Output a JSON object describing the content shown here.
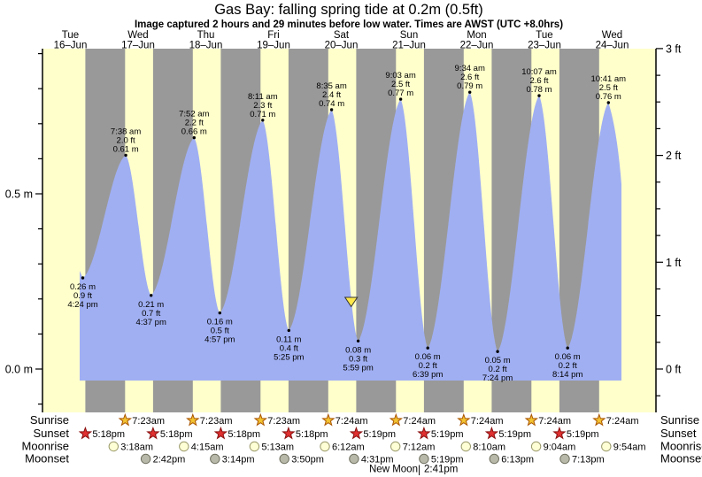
{
  "title": "Gas Bay: falling  spring tide at 0.2m (0.5ft)",
  "subtitle": "Image captured 2 hours and 29 minutes before low water. Times are AWST (UTC +8.0hrs)",
  "colors": {
    "day_band": "#ffffcc",
    "night_band": "#999999",
    "tide_fill": "#a0aff2",
    "day_label": "#ee3333",
    "sunrise_star": "#f2c231",
    "sunrise_star_outline": "#aa5500",
    "sunset_star": "#e03030",
    "sunset_star_outline": "#8a1010",
    "moonrise_circle": "#ffffd6",
    "moonrise_circle_outline": "#99996a",
    "moonset_circle": "#b9b9aa",
    "moonset_circle_outline": "#6f6f5f",
    "now_marker": "#ffe84a"
  },
  "chart_data": {
    "type": "area",
    "title": "Gas Bay: falling  spring tide at 0.2m (0.5ft)",
    "subtitle": "Image captured 2 hours and 29 minutes before low water. Times are AWST (UTC +8.0hrs)",
    "ylabel_left_unit": "m",
    "ylabel_right_unit": "ft",
    "ylim_m": [
      -0.12,
      0.95
    ],
    "grid": false,
    "days": [
      {
        "name": "Tue",
        "date": "16–Jun"
      },
      {
        "name": "Wed",
        "date": "17–Jun"
      },
      {
        "name": "Thu",
        "date": "18–Jun"
      },
      {
        "name": "Fri",
        "date": "19–Jun"
      },
      {
        "name": "Sat",
        "date": "20–Jun"
      },
      {
        "name": "Sun",
        "date": "21–Jun"
      },
      {
        "name": "Mon",
        "date": "22–Jun"
      },
      {
        "name": "Tue",
        "date": "23–Jun"
      },
      {
        "name": "Wed",
        "date": "24–Jun"
      }
    ],
    "y_axis_left": {
      "tick_step_m": 0.1,
      "labels": [
        {
          "m": 0.0,
          "text": "0.0 m"
        },
        {
          "m": 0.5,
          "text": "0.5 m"
        }
      ]
    },
    "y_axis_right": {
      "tick_step_ft": 0.25,
      "labels": [
        {
          "ft": 0,
          "text": "0 ft"
        },
        {
          "ft": 1,
          "text": "1 ft"
        },
        {
          "ft": 2,
          "text": "2 ft"
        },
        {
          "ft": 3,
          "text": "3 ft"
        }
      ]
    },
    "high_tides": [
      {
        "day_index": 1,
        "time": "7:38 am",
        "ft": "2.0 ft",
        "m": "0.61 m"
      },
      {
        "day_index": 2,
        "time": "7:52 am",
        "ft": "2.2 ft",
        "m": "0.66 m"
      },
      {
        "day_index": 3,
        "time": "8:11 am",
        "ft": "2.3 ft",
        "m": "0.71 m"
      },
      {
        "day_index": 4,
        "time": "8:35 am",
        "ft": "2.4 ft",
        "m": "0.74 m"
      },
      {
        "day_index": 5,
        "time": "9:03 am",
        "ft": "2.5 ft",
        "m": "0.77 m"
      },
      {
        "day_index": 6,
        "time": "9:34 am",
        "ft": "2.6 ft",
        "m": "0.79 m"
      },
      {
        "day_index": 7,
        "time": "10:07 am",
        "ft": "2.6 ft",
        "m": "0.78 m"
      },
      {
        "day_index": 8,
        "time": "10:41 am",
        "ft": "2.5 ft",
        "m": "0.76 m"
      }
    ],
    "low_tides": [
      {
        "day_index": 0,
        "m": "0.26 m",
        "ft": "0.9 ft",
        "time": "4:24 pm"
      },
      {
        "day_index": 1,
        "m": "0.21 m",
        "ft": "0.7 ft",
        "time": "4:37 pm"
      },
      {
        "day_index": 2,
        "m": "0.16 m",
        "ft": "0.5 ft",
        "time": "4:57 pm"
      },
      {
        "day_index": 3,
        "m": "0.11 m",
        "ft": "0.4 ft",
        "time": "5:25 pm"
      },
      {
        "day_index": 4,
        "m": "0.08 m",
        "ft": "0.3 ft",
        "time": "5:59 pm"
      },
      {
        "day_index": 5,
        "m": "0.06 m",
        "ft": "0.2 ft",
        "time": "6:39 pm"
      },
      {
        "day_index": 6,
        "m": "0.05 m",
        "ft": "0.2 ft",
        "time": "7:24 pm"
      },
      {
        "day_index": 7,
        "m": "0.06 m",
        "ft": "0.2 ft",
        "time": "8:14 pm"
      }
    ],
    "current_marker": {
      "day_index": 4,
      "hour": 15.5
    },
    "sun_moon": {
      "sunrise": {
        "label": "Sunrise",
        "events": [
          {
            "day_index": 1,
            "time": "7:23am"
          },
          {
            "day_index": 2,
            "time": "7:23am"
          },
          {
            "day_index": 3,
            "time": "7:23am"
          },
          {
            "day_index": 4,
            "time": "7:24am"
          },
          {
            "day_index": 5,
            "time": "7:24am"
          },
          {
            "day_index": 6,
            "time": "7:24am"
          },
          {
            "day_index": 7,
            "time": "7:24am"
          },
          {
            "day_index": 8,
            "time": "7:24am"
          }
        ]
      },
      "sunset": {
        "label": "Sunset",
        "events": [
          {
            "day_index": 0,
            "time": "5:18pm"
          },
          {
            "day_index": 1,
            "time": "5:18pm"
          },
          {
            "day_index": 2,
            "time": "5:18pm"
          },
          {
            "day_index": 3,
            "time": "5:18pm"
          },
          {
            "day_index": 4,
            "time": "5:19pm"
          },
          {
            "day_index": 5,
            "time": "5:19pm"
          },
          {
            "day_index": 6,
            "time": "5:19pm"
          },
          {
            "day_index": 7,
            "time": "5:19pm"
          }
        ]
      },
      "moonrise": {
        "label": "Moonrise",
        "events": [
          {
            "day_index": 1,
            "time": "3:18am"
          },
          {
            "day_index": 2,
            "time": "4:15am"
          },
          {
            "day_index": 3,
            "time": "5:13am"
          },
          {
            "day_index": 4,
            "time": "6:12am"
          },
          {
            "day_index": 5,
            "time": "7:12am"
          },
          {
            "day_index": 6,
            "time": "8:10am"
          },
          {
            "day_index": 7,
            "time": "9:04am"
          },
          {
            "day_index": 8,
            "time": "9:54am"
          }
        ]
      },
      "moonset": {
        "label": "Moonset",
        "events": [
          {
            "day_index": 1,
            "time": "2:42pm"
          },
          {
            "day_index": 2,
            "time": "3:14pm"
          },
          {
            "day_index": 3,
            "time": "3:50pm"
          },
          {
            "day_index": 4,
            "time": "4:31pm"
          },
          {
            "day_index": 5,
            "time": "5:19pm"
          },
          {
            "day_index": 6,
            "time": "6:13pm"
          },
          {
            "day_index": 7,
            "time": "7:13pm"
          }
        ]
      }
    },
    "new_moon": {
      "label": "New Moon",
      "separator": "|",
      "time": "2:41pm"
    }
  }
}
